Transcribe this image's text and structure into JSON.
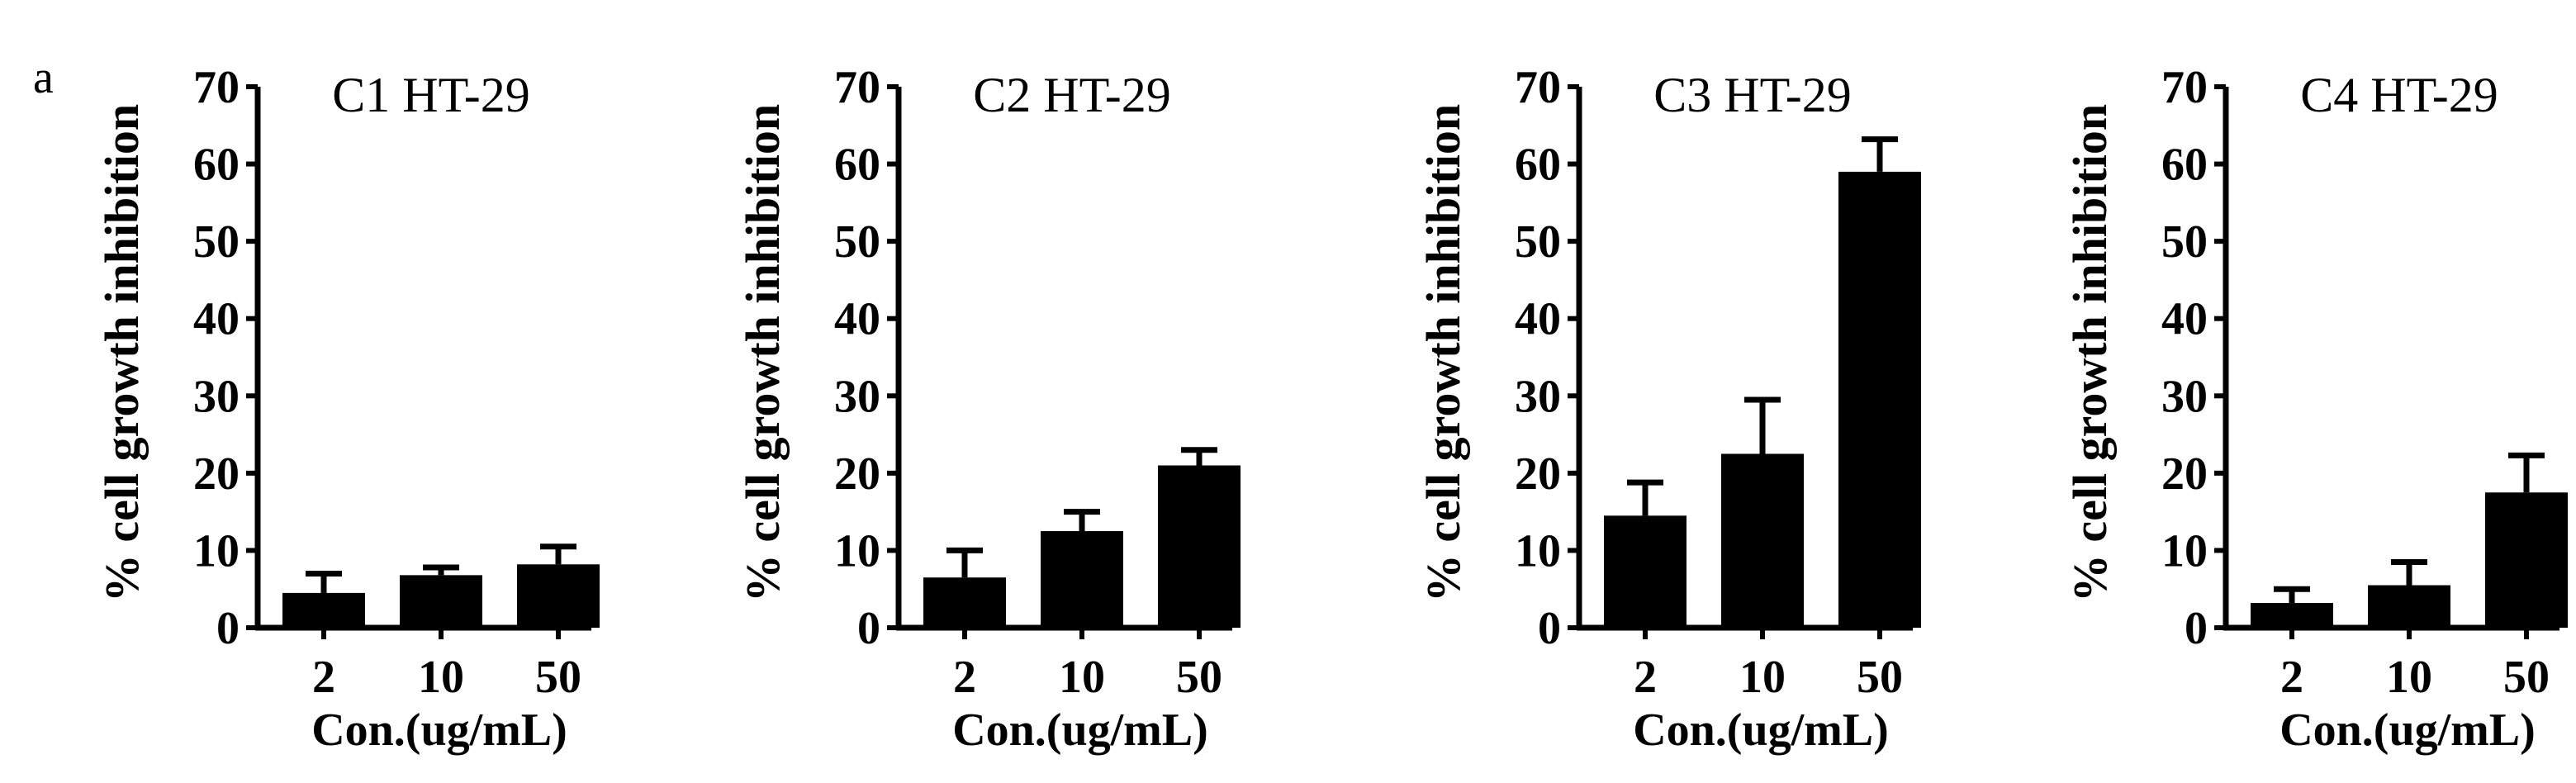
{
  "panel_label": "a",
  "chart_data": [
    {
      "type": "bar",
      "title": "C1 HT-29",
      "xlabel": "Con.(ug/mL)",
      "ylabel": "% cell growth inhibition",
      "categories": [
        "2",
        "10",
        "50"
      ],
      "values": [
        4.5,
        6.8,
        8.2
      ],
      "errors": [
        2.5,
        1.0,
        2.3
      ],
      "ylim": [
        0,
        70
      ],
      "yticks": [
        "0",
        "10",
        "20",
        "30",
        "40",
        "50",
        "60",
        "70"
      ],
      "grid": false,
      "bar_color": "#000000"
    },
    {
      "type": "bar",
      "title": "C2 HT-29",
      "xlabel": "Con.(ug/mL)",
      "ylabel": "% cell growth inhibition",
      "categories": [
        "2",
        "10",
        "50"
      ],
      "values": [
        6.5,
        12.5,
        21.0
      ],
      "errors": [
        3.5,
        2.5,
        2.0
      ],
      "ylim": [
        0,
        70
      ],
      "yticks": [
        "0",
        "10",
        "20",
        "30",
        "40",
        "50",
        "60",
        "70"
      ],
      "grid": false,
      "bar_color": "#000000"
    },
    {
      "type": "bar",
      "title": "C3 HT-29",
      "xlabel": "Con.(ug/mL)",
      "ylabel": "% cell growth inhibition",
      "categories": [
        "2",
        "10",
        "50"
      ],
      "values": [
        14.5,
        22.5,
        59.0
      ],
      "errors": [
        4.3,
        7.0,
        4.2
      ],
      "ylim": [
        0,
        70
      ],
      "yticks": [
        "0",
        "10",
        "20",
        "30",
        "40",
        "50",
        "60",
        "70"
      ],
      "grid": false,
      "bar_color": "#000000"
    },
    {
      "type": "bar",
      "title": "C4 HT-29",
      "xlabel": "Con.(ug/mL)",
      "ylabel": "% cell growth inhibition",
      "categories": [
        "2",
        "10",
        "50"
      ],
      "values": [
        3.2,
        5.5,
        17.5
      ],
      "errors": [
        1.8,
        3.0,
        4.8
      ],
      "ylim": [
        0,
        70
      ],
      "yticks": [
        "0",
        "10",
        "20",
        "30",
        "40",
        "50",
        "60",
        "70"
      ],
      "grid": false,
      "bar_color": "#000000"
    }
  ]
}
